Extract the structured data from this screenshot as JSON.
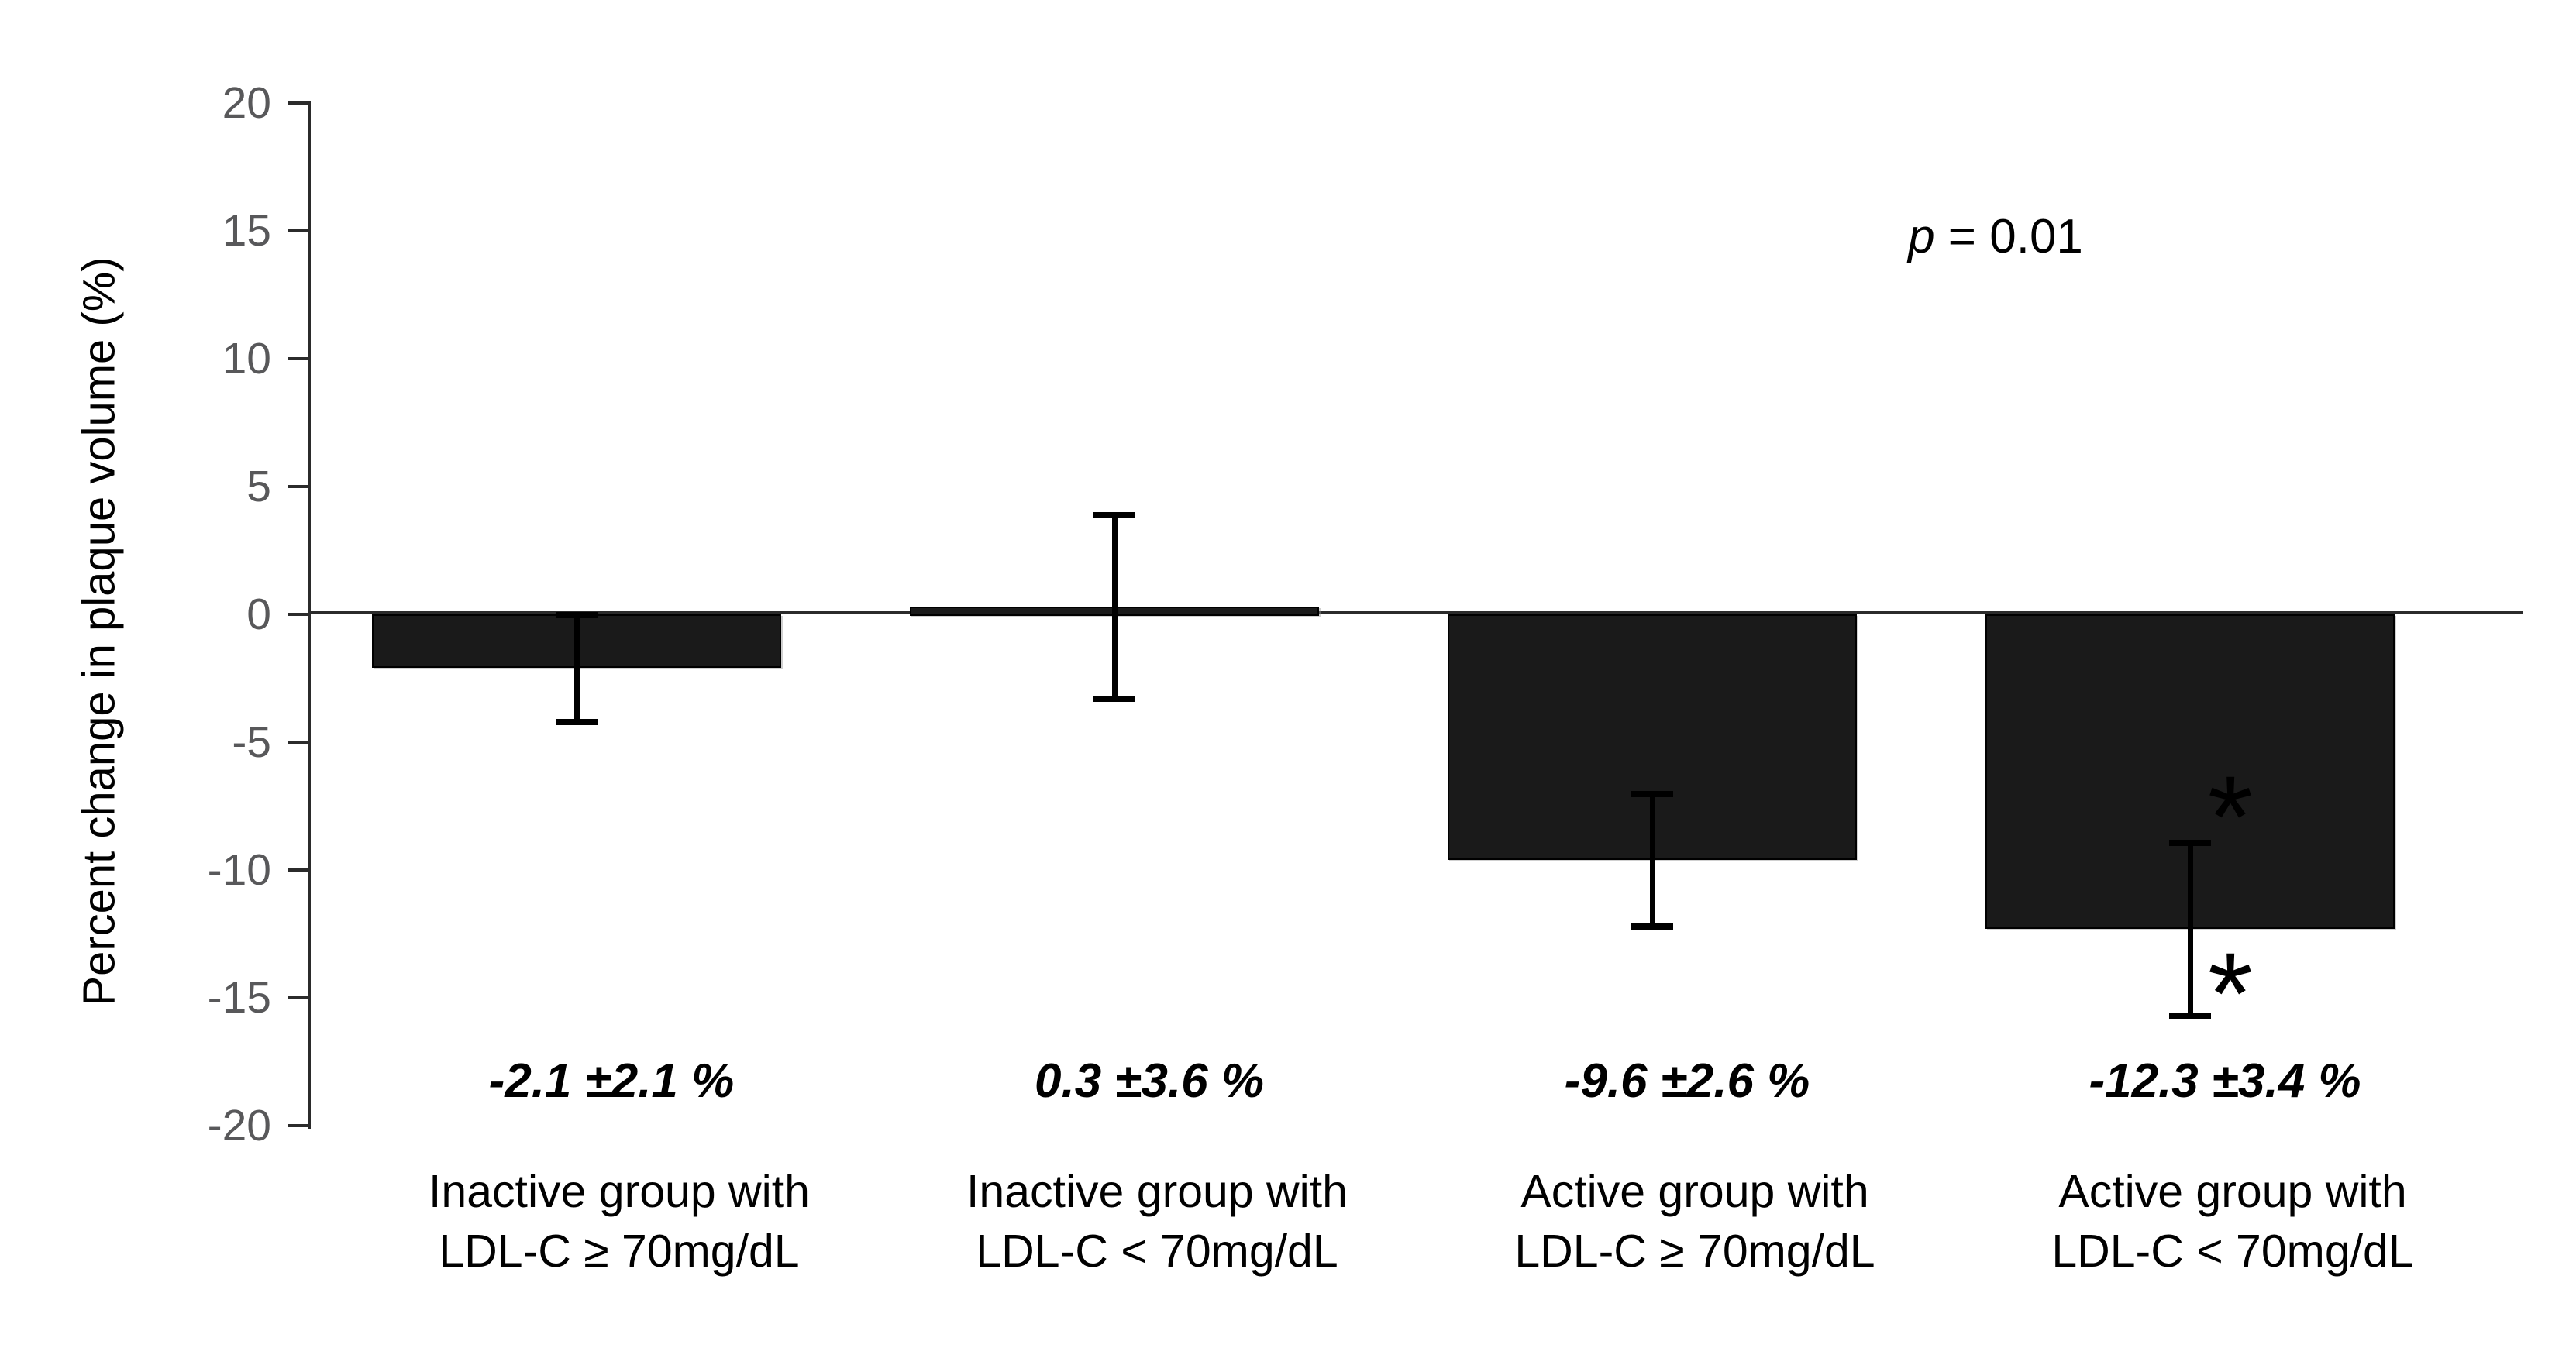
{
  "chart_data": {
    "type": "bar",
    "title": "",
    "ylabel": "Percent change in plaque volume (%)",
    "xlabel": "",
    "ylim": [
      -20,
      20
    ],
    "ytick_interval": 5,
    "yticks": [
      20,
      15,
      10,
      5,
      0,
      -5,
      -10,
      -15,
      -20
    ],
    "categories": [
      [
        "Inactive group with",
        "LDL-C ≥ 70mg/dL"
      ],
      [
        "Inactive group with",
        "LDL-C < 70mg/dL"
      ],
      [
        "Active group with",
        "LDL-C ≥ 70mg/dL"
      ],
      [
        "Active group with",
        "LDL-C < 70mg/dL"
      ]
    ],
    "values": [
      -2.1,
      0.3,
      -9.6,
      -12.3
    ],
    "errors": [
      2.1,
      3.6,
      2.6,
      3.4
    ],
    "error_bar_style": "symmetric black whiskers with end caps",
    "value_labels": [
      "-2.1 ±2.1 %",
      "0.3 ±3.6 %",
      "-9.6 ±2.6 %",
      "-12.3 ±3.4 %"
    ],
    "annotation": "p = 0.01",
    "annotation_parts": {
      "p_var": "p",
      "p_rest": " = 0.01"
    },
    "significance": {
      "bar_index": 3,
      "symbols": [
        "*",
        "*"
      ]
    },
    "bar_color": "#1a1a1a",
    "tick_label_color": "#58585a",
    "axis_color": "#2b2b2b",
    "grid": false,
    "legend": null,
    "zero_baseline": true
  }
}
